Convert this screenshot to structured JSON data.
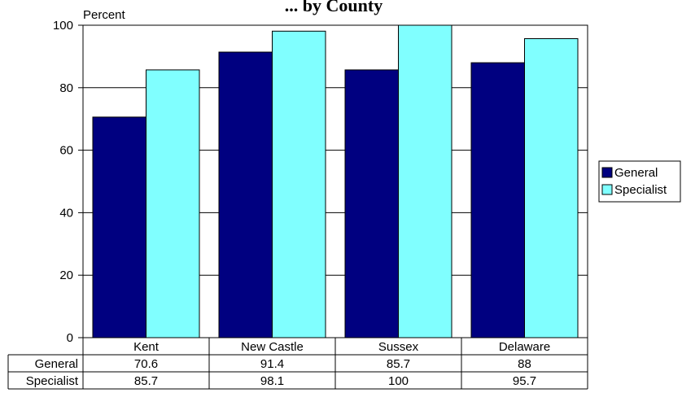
{
  "chart_data": {
    "type": "bar",
    "title": "... by County",
    "ylabel": "Percent",
    "xlabel": "",
    "ylim": [
      0,
      100
    ],
    "yticks": [
      0,
      20,
      40,
      60,
      80,
      100
    ],
    "categories": [
      "Kent",
      "New Castle",
      "Sussex",
      "Delaware"
    ],
    "series": [
      {
        "name": "General",
        "values": [
          70.6,
          91.4,
          85.7,
          88
        ],
        "color": "#000080"
      },
      {
        "name": "Specialist",
        "values": [
          85.7,
          98.1,
          100,
          95.7
        ],
        "color": "#80FFFF"
      }
    ],
    "grid": true,
    "legend_position": "right",
    "data_table": true
  }
}
